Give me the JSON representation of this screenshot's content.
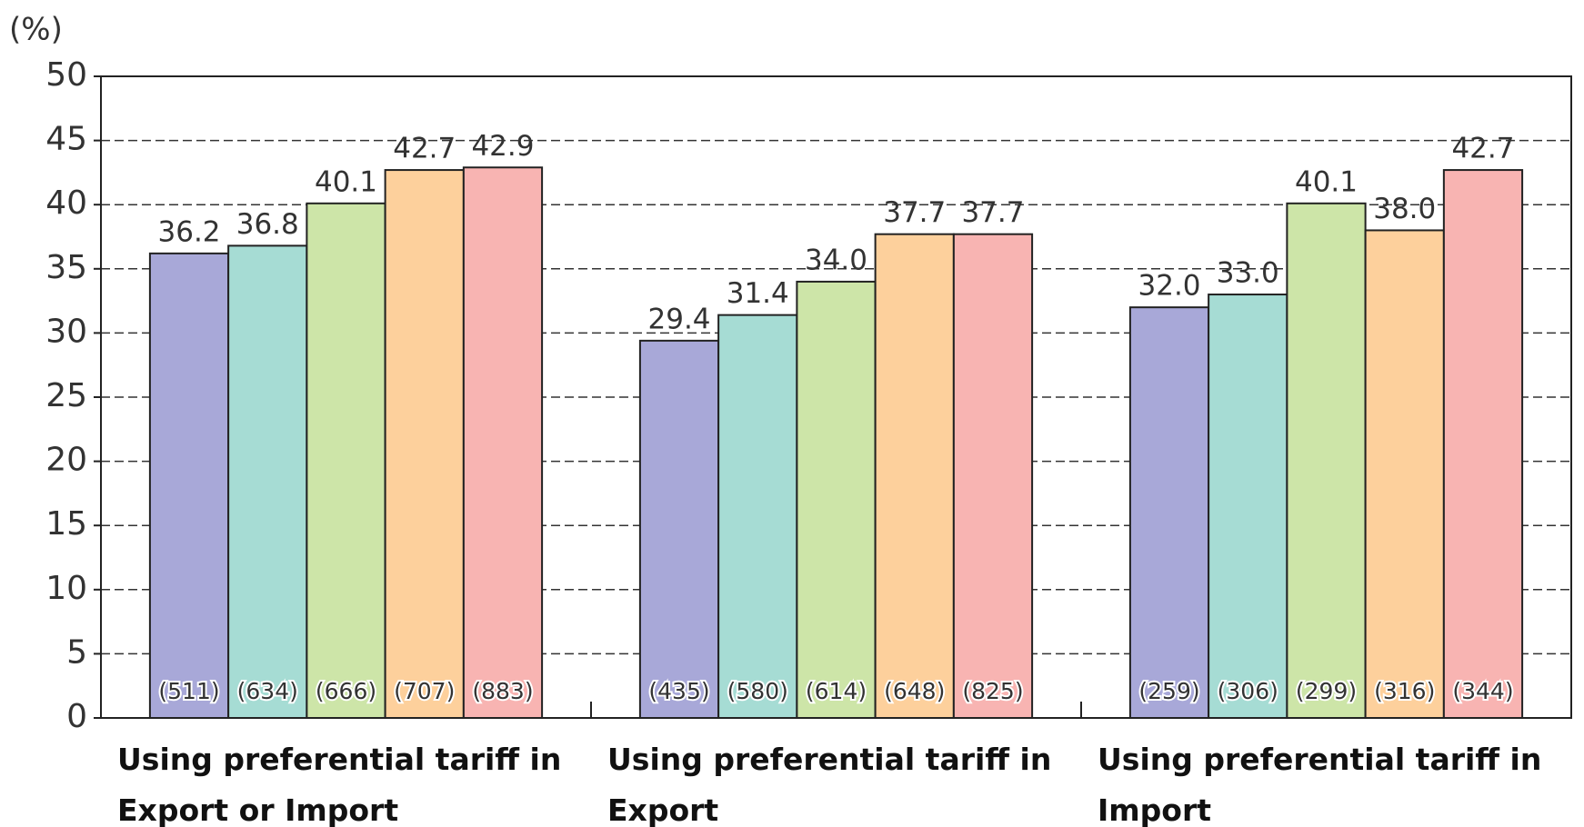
{
  "chart_data": {
    "type": "bar",
    "y_label": "(%)",
    "categories": [
      "Using preferential tariff in Export or Import",
      "Using preferential tariff in Export",
      "Using preferential tariff in Import"
    ],
    "series": [
      {
        "color": "#a8a8d8",
        "values": [
          36.2,
          29.4,
          32.0
        ],
        "value_labels": [
          "36.2",
          "29.4",
          "32.0"
        ],
        "count_labels": [
          "(511)",
          "(435)",
          "(259)"
        ]
      },
      {
        "color": "#a6dcd4",
        "values": [
          36.8,
          31.4,
          33.0
        ],
        "value_labels": [
          "36.8",
          "31.4",
          "33.0"
        ],
        "count_labels": [
          "(634)",
          "(580)",
          "(306)"
        ]
      },
      {
        "color": "#cde5a8",
        "values": [
          40.1,
          34.0,
          40.1
        ],
        "value_labels": [
          "40.1",
          "34.0",
          "40.1"
        ],
        "count_labels": [
          "(666)",
          "(614)",
          "(299)"
        ]
      },
      {
        "color": "#fdd09c",
        "values": [
          42.7,
          37.7,
          38.0
        ],
        "value_labels": [
          "42.7",
          "37.7",
          "38.0"
        ],
        "count_labels": [
          "(707)",
          "(648)",
          "(316)"
        ]
      },
      {
        "color": "#f8b4b2",
        "values": [
          42.9,
          37.7,
          42.7
        ],
        "value_labels": [
          "42.9",
          "37.7",
          "42.7"
        ],
        "count_labels": [
          "(883)",
          "(825)",
          "(344)"
        ]
      }
    ],
    "ylim": [
      0,
      50
    ],
    "yticks": [
      0,
      5,
      10,
      15,
      20,
      25,
      30,
      35,
      40,
      45,
      50
    ],
    "grid": true
  }
}
